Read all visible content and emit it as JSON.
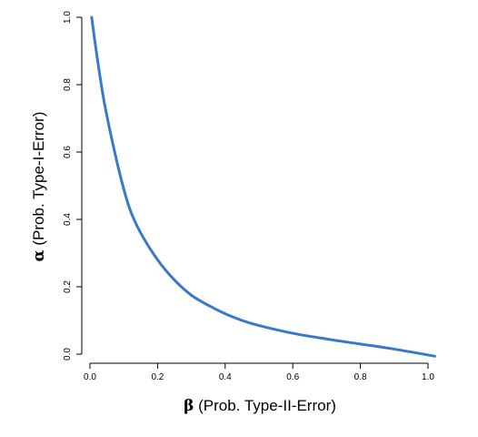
{
  "chart_data": {
    "type": "line",
    "title": "",
    "xlabel_symbol": "β",
    "xlabel_text": " (Prob. Type-II-Error)",
    "ylabel_symbol": "α",
    "ylabel_text": " (Prob. Type-I-Error)",
    "xlim": [
      0.0,
      1.02
    ],
    "ylim": [
      0.0,
      1.0
    ],
    "x_ticks": [
      "0.0",
      "0.2",
      "0.4",
      "0.6",
      "0.8",
      "1.0"
    ],
    "y_ticks": [
      "0.0",
      "0.2",
      "0.4",
      "0.6",
      "0.8",
      "1.0"
    ],
    "grid": false,
    "series": [
      {
        "color": "#3a78cc",
        "points": [
          [
            0.005,
            1.0
          ],
          [
            0.02,
            0.89
          ],
          [
            0.04,
            0.76
          ],
          [
            0.06,
            0.66
          ],
          [
            0.08,
            0.57
          ],
          [
            0.1,
            0.49
          ],
          [
            0.12,
            0.425
          ],
          [
            0.15,
            0.36
          ],
          [
            0.2,
            0.28
          ],
          [
            0.25,
            0.22
          ],
          [
            0.3,
            0.175
          ],
          [
            0.35,
            0.145
          ],
          [
            0.4,
            0.12
          ],
          [
            0.45,
            0.1
          ],
          [
            0.5,
            0.085
          ],
          [
            0.6,
            0.062
          ],
          [
            0.7,
            0.045
          ],
          [
            0.8,
            0.03
          ],
          [
            0.9,
            0.015
          ],
          [
            1.02,
            -0.006
          ]
        ]
      }
    ]
  }
}
